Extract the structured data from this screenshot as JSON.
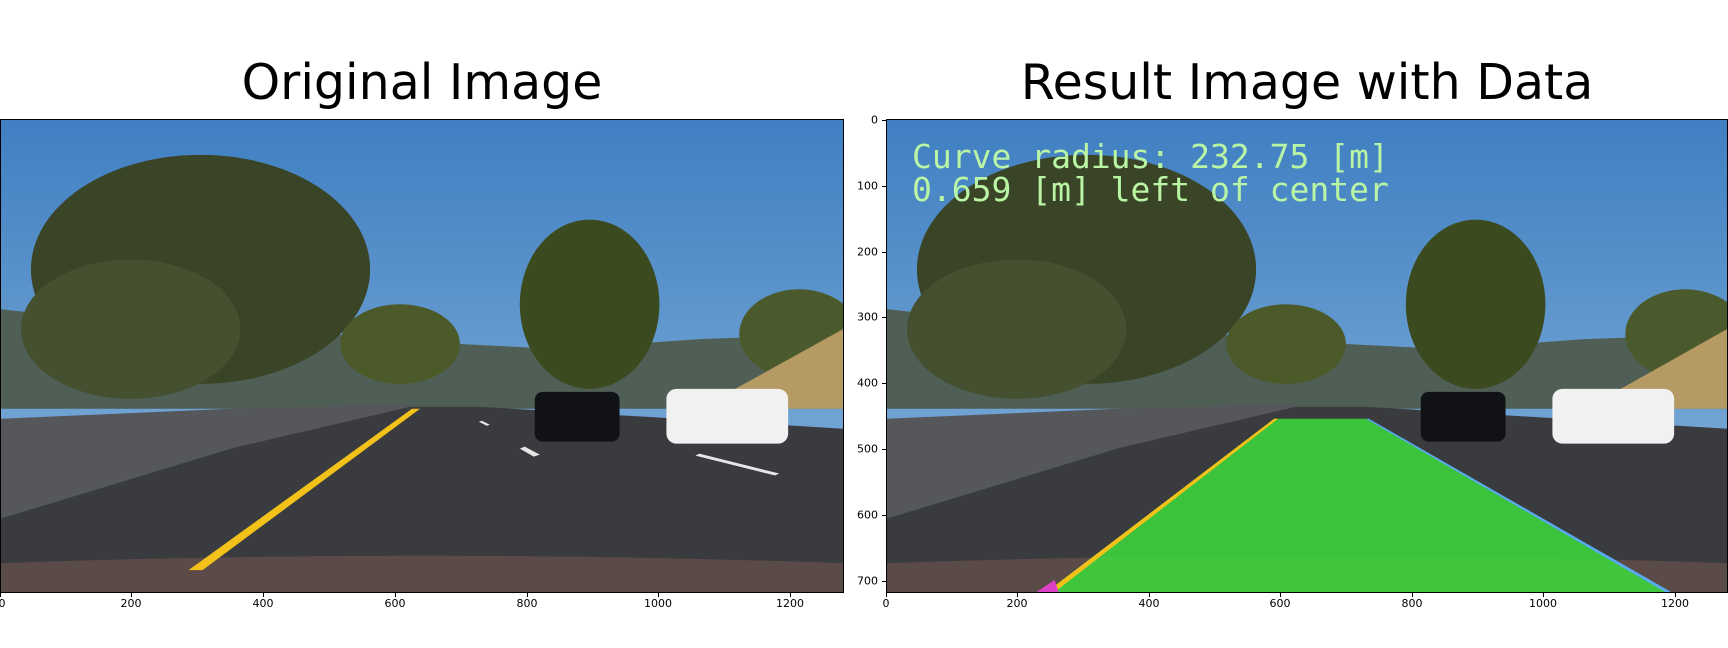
{
  "left_panel": {
    "title": "Original Image",
    "x_ticks": [
      "0",
      "200",
      "400",
      "600",
      "800",
      "1000",
      "1200"
    ]
  },
  "right_panel": {
    "title": "Result Image with Data",
    "x_ticks": [
      "0",
      "200",
      "400",
      "600",
      "800",
      "1000",
      "1200"
    ],
    "y_ticks": [
      "0",
      "100",
      "200",
      "300",
      "400",
      "500",
      "600",
      "700"
    ],
    "overlay": {
      "line1": "Curve radius: 232.75 [m]",
      "line2": "0.659 [m] left of center",
      "color": "#b9f5a4"
    },
    "lane_color": "#3cdc3c"
  },
  "colors": {
    "sky": "#4a86c4",
    "road": "#3a3b3e",
    "lane_yellow": "#f2c21b"
  }
}
